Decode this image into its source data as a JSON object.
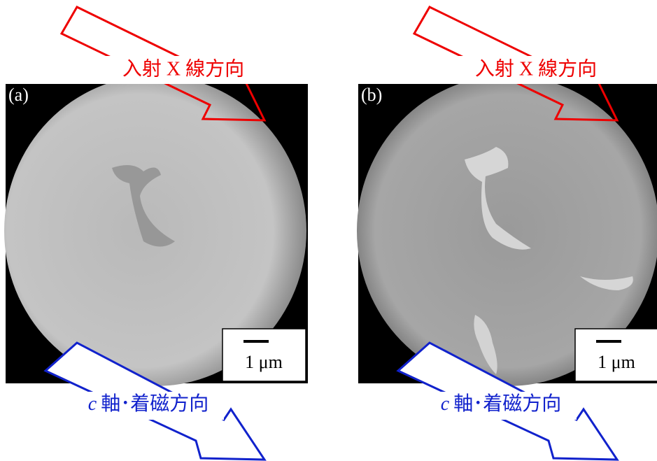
{
  "panels": [
    {
      "label": "(a)",
      "incident_label": "入射 X 線方向",
      "scale_label": "1 μm",
      "axis_symbol": "c",
      "axis_label": "軸･着磁方向"
    },
    {
      "label": "(b)",
      "incident_label": "入射 X 線方向",
      "scale_label": "1 μm",
      "axis_symbol": "c",
      "axis_label": "軸･着磁方向"
    }
  ]
}
